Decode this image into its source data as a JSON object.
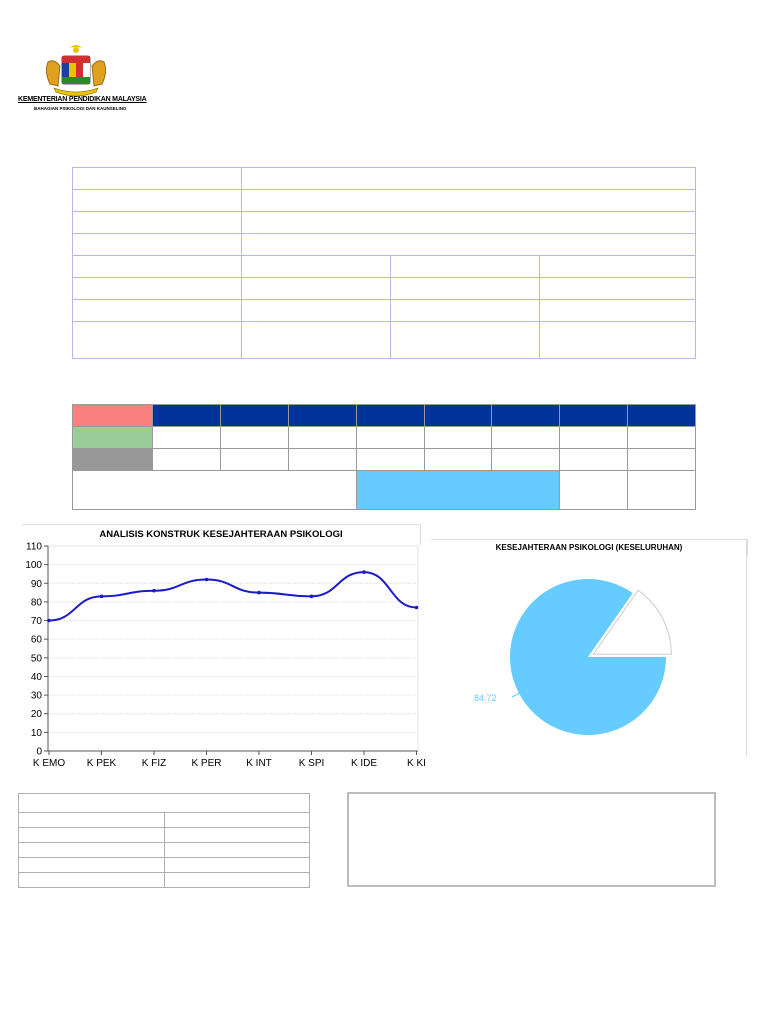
{
  "header": {
    "ministry_name": "KEMENTERIAN PENDIDIKAN MALAYSIA",
    "division_name": "BAHAGIAN PSIKOLOGI DAN KAUNSELING",
    "logo_icon": "malaysia-coat-of-arms-icon"
  },
  "colors": {
    "table_border": "#b8b8e6",
    "header_blue": "#003399",
    "red": "#fa8080",
    "green": "#99cc99",
    "gray": "#999999",
    "light_blue": "#66ccff",
    "line_color": "#1a1acc"
  },
  "chart_data": [
    {
      "type": "line",
      "title": "ANALISIS KONSTRUK KESEJAHTERAAN PSIKOLOGI",
      "categories": [
        "K EMO",
        "K PEK",
        "K FIZ",
        "K PER",
        "K INT",
        "K SPI",
        "K IDE",
        "K KI"
      ],
      "series": [
        {
          "values": [
            70,
            83,
            86,
            92,
            85,
            83,
            96,
            77
          ]
        }
      ],
      "ylim": [
        0,
        110
      ],
      "yticks": [
        "0",
        "10",
        "20",
        "30",
        "40",
        "50",
        "60",
        "70",
        "80",
        "90",
        "100",
        "110"
      ],
      "grid": true
    },
    {
      "type": "pie",
      "title": "KESEJAHTERAAN PSIKOLOGI (KESELURUHAN)",
      "values": [
        84.72,
        15.28
      ],
      "data_label": "84.72",
      "slice_colors": [
        "#66ccff",
        "#ffffff"
      ]
    }
  ]
}
